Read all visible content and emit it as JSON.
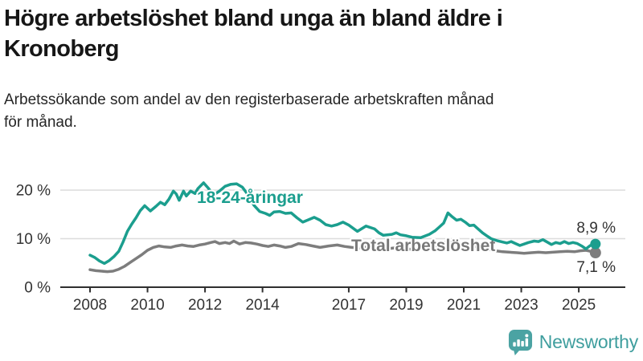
{
  "chart_data": {
    "type": "line",
    "title_lines": [
      "Högre arbetslöshet bland unga än bland äldre i",
      "Kronoberg"
    ],
    "subtitle_lines": [
      "Arbetssökande som andel av den registerbaserade arbetskraften månad",
      "för månad."
    ],
    "unit": "%",
    "x_axis": {
      "ticks": [
        {
          "year": 2008,
          "label": "2008"
        },
        {
          "year": 2010,
          "label": "2010"
        },
        {
          "year": 2012,
          "label": "2012"
        },
        {
          "year": 2014,
          "label": "2014"
        },
        {
          "year": 2017,
          "label": "2017"
        },
        {
          "year": 2019,
          "label": "2019"
        },
        {
          "year": 2021,
          "label": "2021"
        },
        {
          "year": 2023,
          "label": "2023"
        },
        {
          "year": 2025,
          "label": "2025"
        }
      ],
      "range": [
        2007.0,
        2026.4
      ]
    },
    "y_axis": {
      "ticks": [
        {
          "value": 0,
          "label": "0 %"
        },
        {
          "value": 10,
          "label": "10 %"
        },
        {
          "value": 20,
          "label": "20 %"
        }
      ],
      "range": [
        0,
        22
      ]
    },
    "grid": true,
    "legend_position": "inline-labels",
    "style": {
      "grid_color": "#dcdcdc",
      "axis_color": "#2f2f2f",
      "tick_text_color": "#333333"
    },
    "series": [
      {
        "id": "total",
        "name": "Total arbetslöshet",
        "color": "#7d7d7d",
        "label_color": "#787878",
        "end_value": 7.1,
        "end_value_label": "7,1 %",
        "points": [
          [
            2008.0,
            3.6
          ],
          [
            2008.2,
            3.4
          ],
          [
            2008.4,
            3.3
          ],
          [
            2008.6,
            3.2
          ],
          [
            2008.8,
            3.3
          ],
          [
            2009.0,
            3.7
          ],
          [
            2009.2,
            4.3
          ],
          [
            2009.4,
            5.1
          ],
          [
            2009.6,
            5.9
          ],
          [
            2009.8,
            6.7
          ],
          [
            2010.0,
            7.6
          ],
          [
            2010.2,
            8.2
          ],
          [
            2010.4,
            8.5
          ],
          [
            2010.6,
            8.3
          ],
          [
            2010.8,
            8.2
          ],
          [
            2011.0,
            8.5
          ],
          [
            2011.2,
            8.7
          ],
          [
            2011.4,
            8.5
          ],
          [
            2011.6,
            8.4
          ],
          [
            2011.8,
            8.7
          ],
          [
            2012.0,
            8.9
          ],
          [
            2012.2,
            9.2
          ],
          [
            2012.35,
            9.4
          ],
          [
            2012.5,
            9.0
          ],
          [
            2012.7,
            9.2
          ],
          [
            2012.85,
            9.0
          ],
          [
            2013.0,
            9.5
          ],
          [
            2013.2,
            8.9
          ],
          [
            2013.4,
            9.2
          ],
          [
            2013.6,
            9.1
          ],
          [
            2013.8,
            8.9
          ],
          [
            2014.0,
            8.6
          ],
          [
            2014.2,
            8.4
          ],
          [
            2014.4,
            8.7
          ],
          [
            2014.6,
            8.5
          ],
          [
            2014.8,
            8.2
          ],
          [
            2015.0,
            8.4
          ],
          [
            2015.25,
            9.0
          ],
          [
            2015.5,
            8.8
          ],
          [
            2015.75,
            8.5
          ],
          [
            2016.0,
            8.2
          ],
          [
            2016.3,
            8.5
          ],
          [
            2016.6,
            8.7
          ],
          [
            2016.85,
            8.4
          ],
          [
            2017.1,
            8.2
          ],
          [
            2017.4,
            8.1
          ],
          [
            2017.7,
            8.3
          ],
          [
            2018.0,
            8.0
          ],
          [
            2018.3,
            7.9
          ],
          [
            2018.6,
            8.1
          ],
          [
            2018.9,
            7.9
          ],
          [
            2019.2,
            7.8
          ],
          [
            2019.5,
            7.9
          ],
          [
            2019.8,
            8.2
          ],
          [
            2020.0,
            8.5
          ],
          [
            2020.2,
            9.0
          ],
          [
            2020.45,
            9.3
          ],
          [
            2020.7,
            9.1
          ],
          [
            2020.9,
            8.9
          ],
          [
            2021.1,
            8.7
          ],
          [
            2021.35,
            8.4
          ],
          [
            2021.6,
            8.1
          ],
          [
            2021.85,
            7.8
          ],
          [
            2022.1,
            7.5
          ],
          [
            2022.35,
            7.3
          ],
          [
            2022.6,
            7.2
          ],
          [
            2022.85,
            7.1
          ],
          [
            2023.1,
            7.0
          ],
          [
            2023.35,
            7.1
          ],
          [
            2023.6,
            7.2
          ],
          [
            2023.85,
            7.1
          ],
          [
            2024.1,
            7.2
          ],
          [
            2024.35,
            7.3
          ],
          [
            2024.6,
            7.4
          ],
          [
            2024.85,
            7.3
          ],
          [
            2025.05,
            7.5
          ],
          [
            2025.25,
            7.6
          ],
          [
            2025.4,
            7.4
          ],
          [
            2025.58,
            7.1
          ]
        ]
      },
      {
        "id": "young",
        "name": "18-24-åringar",
        "color": "#1b9e8e",
        "label_color": "#1b9e8e",
        "end_value": 8.9,
        "end_value_label": "8,9 %",
        "points": [
          [
            2008.0,
            6.6
          ],
          [
            2008.17,
            6.1
          ],
          [
            2008.33,
            5.4
          ],
          [
            2008.5,
            4.9
          ],
          [
            2008.67,
            5.5
          ],
          [
            2008.83,
            6.3
          ],
          [
            2009.0,
            7.4
          ],
          [
            2009.15,
            9.3
          ],
          [
            2009.3,
            11.5
          ],
          [
            2009.45,
            13.0
          ],
          [
            2009.6,
            14.3
          ],
          [
            2009.75,
            15.8
          ],
          [
            2009.9,
            16.8
          ],
          [
            2010.1,
            15.7
          ],
          [
            2010.3,
            16.7
          ],
          [
            2010.45,
            17.5
          ],
          [
            2010.6,
            17.0
          ],
          [
            2010.75,
            18.2
          ],
          [
            2010.9,
            19.8
          ],
          [
            2011.0,
            19.2
          ],
          [
            2011.1,
            17.9
          ],
          [
            2011.25,
            19.8
          ],
          [
            2011.35,
            18.8
          ],
          [
            2011.5,
            19.8
          ],
          [
            2011.65,
            19.3
          ],
          [
            2011.75,
            20.3
          ],
          [
            2011.95,
            21.5
          ],
          [
            2012.1,
            20.5
          ],
          [
            2012.3,
            19.0
          ],
          [
            2012.5,
            19.8
          ],
          [
            2012.7,
            20.8
          ],
          [
            2012.9,
            21.2
          ],
          [
            2013.1,
            21.3
          ],
          [
            2013.3,
            20.6
          ],
          [
            2013.5,
            19.0
          ],
          [
            2013.7,
            16.9
          ],
          [
            2013.9,
            15.6
          ],
          [
            2014.1,
            15.2
          ],
          [
            2014.25,
            14.8
          ],
          [
            2014.4,
            15.5
          ],
          [
            2014.6,
            15.6
          ],
          [
            2014.8,
            15.2
          ],
          [
            2015.0,
            15.3
          ],
          [
            2015.2,
            14.3
          ],
          [
            2015.4,
            13.4
          ],
          [
            2015.6,
            13.9
          ],
          [
            2015.8,
            14.4
          ],
          [
            2016.0,
            13.8
          ],
          [
            2016.2,
            12.9
          ],
          [
            2016.4,
            12.6
          ],
          [
            2016.6,
            12.9
          ],
          [
            2016.8,
            13.4
          ],
          [
            2017.0,
            12.8
          ],
          [
            2017.3,
            11.5
          ],
          [
            2017.6,
            12.6
          ],
          [
            2017.9,
            12.0
          ],
          [
            2018.05,
            11.2
          ],
          [
            2018.2,
            10.7
          ],
          [
            2018.5,
            10.9
          ],
          [
            2018.65,
            11.2
          ],
          [
            2018.8,
            10.8
          ],
          [
            2019.0,
            10.6
          ],
          [
            2019.2,
            10.3
          ],
          [
            2019.5,
            10.2
          ],
          [
            2019.8,
            10.9
          ],
          [
            2020.0,
            11.6
          ],
          [
            2020.15,
            12.4
          ],
          [
            2020.3,
            13.2
          ],
          [
            2020.45,
            15.3
          ],
          [
            2020.6,
            14.5
          ],
          [
            2020.75,
            13.8
          ],
          [
            2020.9,
            14.0
          ],
          [
            2021.05,
            13.4
          ],
          [
            2021.2,
            12.7
          ],
          [
            2021.35,
            12.8
          ],
          [
            2021.5,
            12.0
          ],
          [
            2021.65,
            11.2
          ],
          [
            2021.8,
            10.6
          ],
          [
            2021.95,
            10.0
          ],
          [
            2022.15,
            9.6
          ],
          [
            2022.35,
            9.3
          ],
          [
            2022.5,
            9.1
          ],
          [
            2022.65,
            9.4
          ],
          [
            2022.8,
            9.0
          ],
          [
            2022.95,
            8.6
          ],
          [
            2023.1,
            8.9
          ],
          [
            2023.25,
            9.2
          ],
          [
            2023.45,
            9.5
          ],
          [
            2023.6,
            9.4
          ],
          [
            2023.75,
            9.8
          ],
          [
            2023.9,
            9.3
          ],
          [
            2024.05,
            8.8
          ],
          [
            2024.2,
            9.2
          ],
          [
            2024.35,
            9.0
          ],
          [
            2024.5,
            9.4
          ],
          [
            2024.65,
            9.0
          ],
          [
            2024.8,
            9.2
          ],
          [
            2024.95,
            9.0
          ],
          [
            2025.1,
            8.5
          ],
          [
            2025.25,
            7.9
          ],
          [
            2025.4,
            8.6
          ],
          [
            2025.58,
            8.9
          ]
        ]
      }
    ]
  },
  "footer": {
    "brand": "Newsworthy",
    "logo_color": "#4ba3a3",
    "brand_text_color": "#3f9e9e"
  }
}
